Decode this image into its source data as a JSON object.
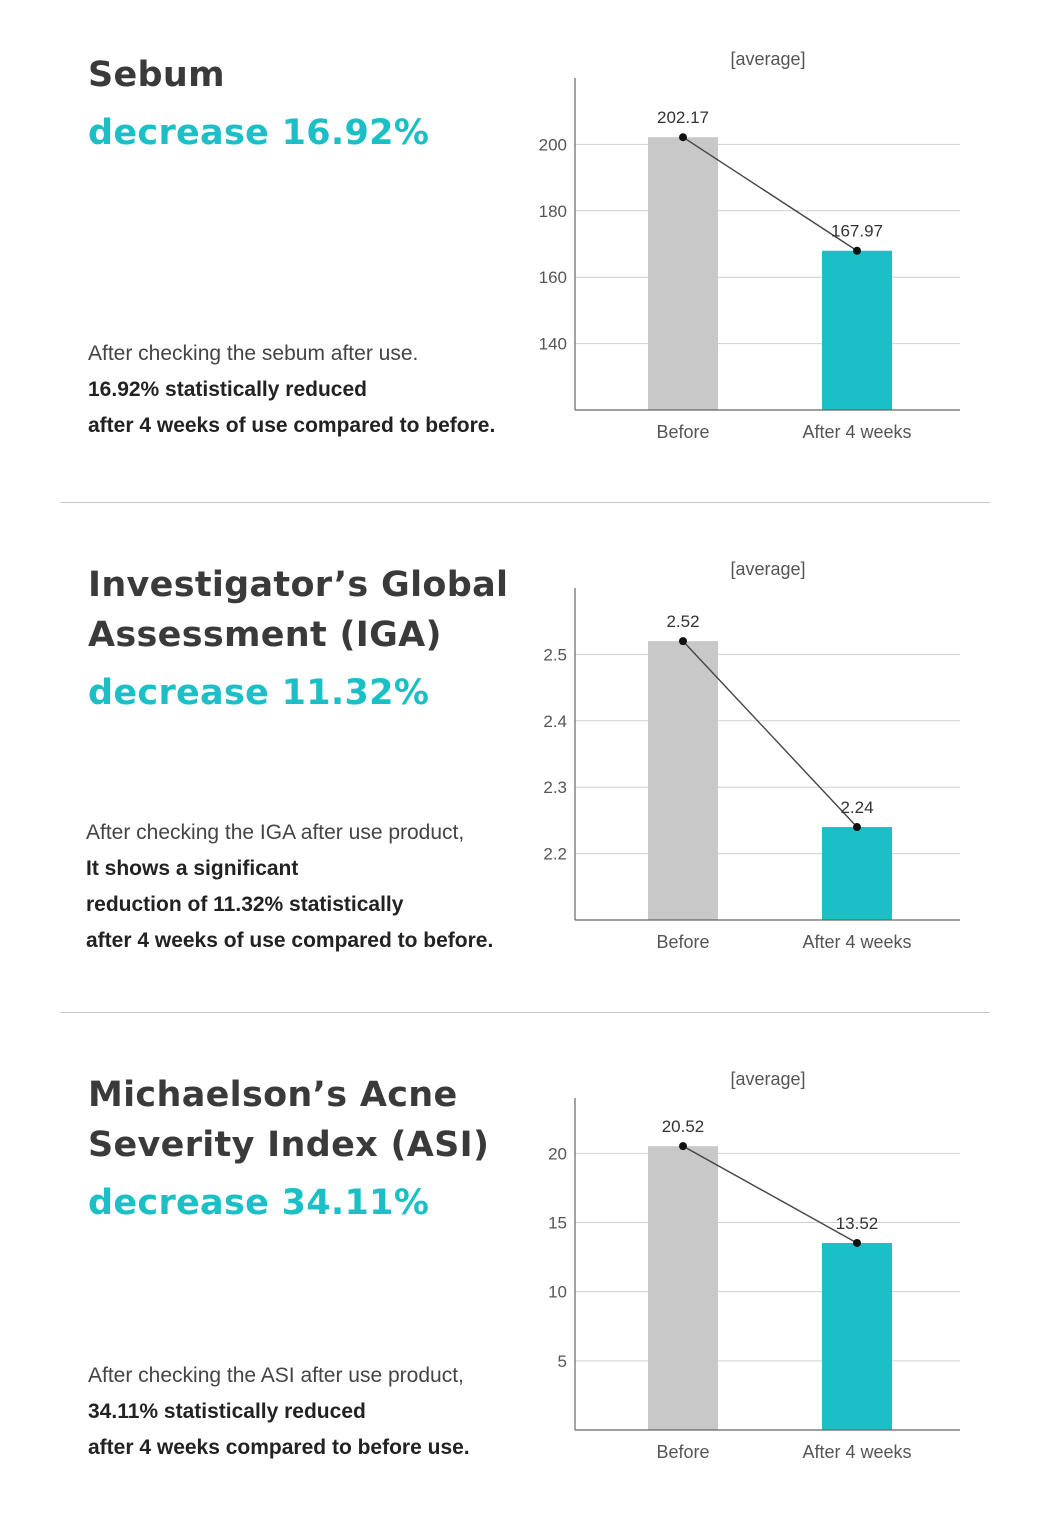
{
  "colors": {
    "accent": "#1bbfc6",
    "before_bar": "#c8c8c8",
    "text": "#333333"
  },
  "sections": [
    {
      "title_lines": [
        "Sebum"
      ],
      "highlight": "decrease 16.92%",
      "description": {
        "lead": "After checking the sebum after use.",
        "bold_lines": [
          "16.92% statistically reduced",
          "after 4 weeks of use compared to before."
        ]
      }
    },
    {
      "title_lines": [
        "Investigator’s Global",
        "Assessment (IGA)"
      ],
      "highlight": "decrease 11.32%",
      "description": {
        "lead": "After checking the IGA after use product,",
        "bold_lines": [
          "It shows a significant",
          "reduction of 11.32% statistically",
          "after 4 weeks of use compared to before."
        ]
      }
    },
    {
      "title_lines": [
        "Michaelson’s Acne",
        "Severity Index (ASI)"
      ],
      "highlight": "decrease 34.11%",
      "description": {
        "lead": "After checking the ASI after use product,",
        "bold_lines": [
          "34.11% statistically reduced",
          "after 4 weeks compared to before use."
        ]
      }
    }
  ],
  "chart_data": [
    {
      "type": "bar",
      "unit_note": "[average]",
      "categories": [
        "Before",
        "After 4 weeks"
      ],
      "values": [
        202.17,
        167.97
      ],
      "value_labels": [
        "202.17",
        "167.97"
      ],
      "yticks": [
        140,
        160,
        180,
        200
      ],
      "ylim": [
        120,
        220
      ],
      "grid": true,
      "connector_line": true
    },
    {
      "type": "bar",
      "unit_note": "[average]",
      "categories": [
        "Before",
        "After 4 weeks"
      ],
      "values": [
        2.52,
        2.24
      ],
      "value_labels": [
        "2.52",
        "2.24"
      ],
      "yticks": [
        2.2,
        2.3,
        2.4,
        2.5
      ],
      "ylim": [
        2.1,
        2.6
      ],
      "grid": true,
      "connector_line": true
    },
    {
      "type": "bar",
      "unit_note": "[average]",
      "categories": [
        "Before",
        "After 4 weeks"
      ],
      "values": [
        20.52,
        13.52
      ],
      "value_labels": [
        "20.52",
        "13.52"
      ],
      "yticks": [
        5,
        10,
        15,
        20
      ],
      "ylim": [
        0,
        24
      ],
      "grid": true,
      "connector_line": true
    }
  ]
}
